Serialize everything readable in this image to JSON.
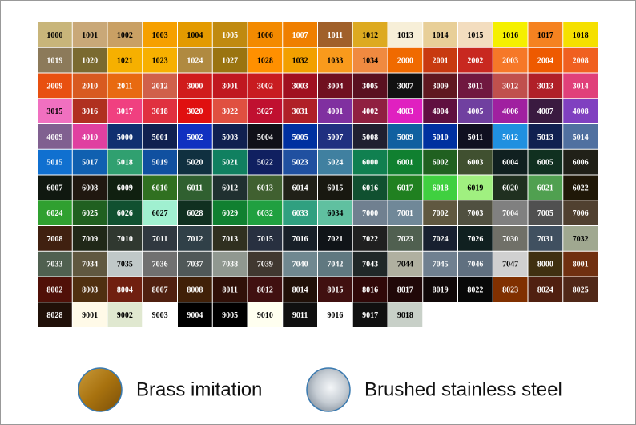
{
  "swatches": [
    {
      "code": "1000",
      "color": "#c8b57a"
    },
    {
      "code": "1001",
      "color": "#c9a878"
    },
    {
      "code": "1002",
      "color": "#c9a064"
    },
    {
      "code": "1003",
      "color": "#f6a000"
    },
    {
      "code": "1004",
      "color": "#e39a00"
    },
    {
      "code": "1005",
      "color": "#c08a10"
    },
    {
      "code": "1006",
      "color": "#f38a00"
    },
    {
      "code": "1007",
      "color": "#ef7f00"
    },
    {
      "code": "1011",
      "color": "#a0602a"
    },
    {
      "code": "1012",
      "color": "#ddaa20"
    },
    {
      "code": "1013",
      "color": "#f7efd8"
    },
    {
      "code": "1014",
      "color": "#e8cf98"
    },
    {
      "code": "1015",
      "color": "#f3ddbf"
    },
    {
      "code": "1016",
      "color": "#f5f000"
    },
    {
      "code": "1017",
      "color": "#f58220"
    },
    {
      "code": "1018",
      "color": "#f5e000"
    },
    {
      "code": "1019",
      "color": "#8c7a5a"
    },
    {
      "code": "1020",
      "color": "#7a6a30"
    },
    {
      "code": "1021",
      "color": "#f6b000"
    },
    {
      "code": "1023",
      "color": "#f7b000"
    },
    {
      "code": "1024",
      "color": "#b08a40"
    },
    {
      "code": "1027",
      "color": "#9a7410"
    },
    {
      "code": "1028",
      "color": "#ff9000"
    },
    {
      "code": "1032",
      "color": "#f2a000"
    },
    {
      "code": "1033",
      "color": "#f99a1c"
    },
    {
      "code": "1034",
      "color": "#f08a40"
    },
    {
      "code": "2000",
      "color": "#f06a00"
    },
    {
      "code": "2001",
      "color": "#c83a10"
    },
    {
      "code": "2002",
      "color": "#c82820"
    },
    {
      "code": "2003",
      "color": "#f67828"
    },
    {
      "code": "2004",
      "color": "#ee5a00"
    },
    {
      "code": "2008",
      "color": "#f06020"
    },
    {
      "code": "2009",
      "color": "#e85010"
    },
    {
      "code": "2010",
      "color": "#d85a20"
    },
    {
      "code": "2011",
      "color": "#e86a10"
    },
    {
      "code": "2012",
      "color": "#d0604a"
    },
    {
      "code": "3000",
      "color": "#d01c1c"
    },
    {
      "code": "3001",
      "color": "#c01820"
    },
    {
      "code": "3002",
      "color": "#c81c20"
    },
    {
      "code": "3003",
      "color": "#a01020"
    },
    {
      "code": "3004",
      "color": "#701020"
    },
    {
      "code": "3005",
      "color": "#5a1020"
    },
    {
      "code": "3007",
      "color": "#101010"
    },
    {
      "code": "3009",
      "color": "#601820"
    },
    {
      "code": "3011",
      "color": "#701840"
    },
    {
      "code": "3012",
      "color": "#c0504d"
    },
    {
      "code": "3013",
      "color": "#b02028"
    },
    {
      "code": "3014",
      "color": "#e0407a"
    },
    {
      "code": "3015",
      "color": "#f070c0"
    },
    {
      "code": "3016",
      "color": "#b03020"
    },
    {
      "code": "3017",
      "color": "#f04080"
    },
    {
      "code": "3018",
      "color": "#e03040"
    },
    {
      "code": "3020",
      "color": "#e01010"
    },
    {
      "code": "3022",
      "color": "#e05040"
    },
    {
      "code": "3027",
      "color": "#c01030"
    },
    {
      "code": "3031",
      "color": "#b02028"
    },
    {
      "code": "4001",
      "color": "#8030a0"
    },
    {
      "code": "4002",
      "color": "#902040"
    },
    {
      "code": "4003",
      "color": "#e020c0"
    },
    {
      "code": "4004",
      "color": "#601040"
    },
    {
      "code": "4005",
      "color": "#7040a0"
    },
    {
      "code": "4006",
      "color": "#a020a0"
    },
    {
      "code": "4007",
      "color": "#3a1a40"
    },
    {
      "code": "4008",
      "color": "#8040c0"
    },
    {
      "code": "4009",
      "color": "#806090"
    },
    {
      "code": "4010",
      "color": "#e040a0"
    },
    {
      "code": "5000",
      "color": "#103070"
    },
    {
      "code": "5001",
      "color": "#102050"
    },
    {
      "code": "5002",
      "color": "#1030c0"
    },
    {
      "code": "5003",
      "color": "#102050"
    },
    {
      "code": "5004",
      "color": "#101018"
    },
    {
      "code": "5005",
      "color": "#0030a0"
    },
    {
      "code": "5007",
      "color": "#203080"
    },
    {
      "code": "5008",
      "color": "#202030"
    },
    {
      "code": "5009",
      "color": "#1060a0"
    },
    {
      "code": "5010",
      "color": "#0030a0"
    },
    {
      "code": "5011",
      "color": "#101020"
    },
    {
      "code": "5012",
      "color": "#2090e0"
    },
    {
      "code": "5013",
      "color": "#102050"
    },
    {
      "code": "5014",
      "color": "#5070a0"
    },
    {
      "code": "5015",
      "color": "#1070d0"
    },
    {
      "code": "5017",
      "color": "#1060b0"
    },
    {
      "code": "5018",
      "color": "#30a070"
    },
    {
      "code": "5019",
      "color": "#1050a0"
    },
    {
      "code": "5020",
      "color": "#103040"
    },
    {
      "code": "5021",
      "color": "#108060"
    },
    {
      "code": "5022",
      "color": "#102060"
    },
    {
      "code": "5023",
      "color": "#2050a0"
    },
    {
      "code": "5024",
      "color": "#4080a0"
    },
    {
      "code": "6000",
      "color": "#108050"
    },
    {
      "code": "6001",
      "color": "#108030"
    },
    {
      "code": "6002",
      "color": "#206020"
    },
    {
      "code": "6003",
      "color": "#405030"
    },
    {
      "code": "6004",
      "color": "#102020"
    },
    {
      "code": "6005",
      "color": "#103020"
    },
    {
      "code": "6006",
      "color": "#202018"
    },
    {
      "code": "6007",
      "color": "#101810"
    },
    {
      "code": "6008",
      "color": "#201810"
    },
    {
      "code": "6009",
      "color": "#102010"
    },
    {
      "code": "6010",
      "color": "#307020"
    },
    {
      "code": "6011",
      "color": "#306030"
    },
    {
      "code": "6012",
      "color": "#203030"
    },
    {
      "code": "6013",
      "color": "#406030"
    },
    {
      "code": "6014",
      "color": "#202018"
    },
    {
      "code": "6015",
      "color": "#181810"
    },
    {
      "code": "6016",
      "color": "#105030"
    },
    {
      "code": "6017",
      "color": "#208020"
    },
    {
      "code": "6018",
      "color": "#40d040"
    },
    {
      "code": "6019",
      "color": "#a0f080"
    },
    {
      "code": "6020",
      "color": "#203020"
    },
    {
      "code": "6021",
      "color": "#50a050"
    },
    {
      "code": "6022",
      "color": "#201808"
    },
    {
      "code": "6024",
      "color": "#30a030"
    },
    {
      "code": "6025",
      "color": "#206020"
    },
    {
      "code": "6026",
      "color": "#105030"
    },
    {
      "code": "6027",
      "color": "#a0f0d0"
    },
    {
      "code": "6028",
      "color": "#103020"
    },
    {
      "code": "6029",
      "color": "#108030"
    },
    {
      "code": "6032",
      "color": "#20a040"
    },
    {
      "code": "6033",
      "color": "#30a080"
    },
    {
      "code": "6034",
      "color": "#60c0a0"
    },
    {
      "code": "7000",
      "color": "#708090"
    },
    {
      "code": "7001",
      "color": "#708898"
    },
    {
      "code": "7002",
      "color": "#605840"
    },
    {
      "code": "7003",
      "color": "#505040"
    },
    {
      "code": "7004",
      "color": "#808080"
    },
    {
      "code": "7005",
      "color": "#505050"
    },
    {
      "code": "7006",
      "color": "#504030"
    },
    {
      "code": "7008",
      "color": "#402010"
    },
    {
      "code": "7009",
      "color": "#202818"
    },
    {
      "code": "7010",
      "color": "#303830"
    },
    {
      "code": "7011",
      "color": "#303840"
    },
    {
      "code": "7012",
      "color": "#304048"
    },
    {
      "code": "7013",
      "color": "#303020"
    },
    {
      "code": "7015",
      "color": "#283040"
    },
    {
      "code": "7016",
      "color": "#182028"
    },
    {
      "code": "7021",
      "color": "#101418"
    },
    {
      "code": "7022",
      "color": "#202020"
    },
    {
      "code": "7023",
      "color": "#506050"
    },
    {
      "code": "7024",
      "color": "#182030"
    },
    {
      "code": "7026",
      "color": "#102020"
    },
    {
      "code": "7030",
      "color": "#707068"
    },
    {
      "code": "7031",
      "color": "#405060"
    },
    {
      "code": "7032",
      "color": "#a0a890"
    },
    {
      "code": "7033",
      "color": "#506050"
    },
    {
      "code": "7034",
      "color": "#605840"
    },
    {
      "code": "7035",
      "color": "#c0c8c8"
    },
    {
      "code": "7036",
      "color": "#707070"
    },
    {
      "code": "7037",
      "color": "#505858"
    },
    {
      "code": "7038",
      "color": "#909890"
    },
    {
      "code": "7039",
      "color": "#403830"
    },
    {
      "code": "7040",
      "color": "#708890"
    },
    {
      "code": "7042",
      "color": "#607880"
    },
    {
      "code": "7043",
      "color": "#202828"
    },
    {
      "code": "7044",
      "color": "#b0b0a0"
    },
    {
      "code": "7045",
      "color": "#708090"
    },
    {
      "code": "7046",
      "color": "#607080"
    },
    {
      "code": "7047",
      "color": "#d0d0d0"
    },
    {
      "code": "8000",
      "color": "#403010"
    },
    {
      "code": "8001",
      "color": "#703010"
    },
    {
      "code": "8002",
      "color": "#501008"
    },
    {
      "code": "8003",
      "color": "#503010"
    },
    {
      "code": "8004",
      "color": "#702010"
    },
    {
      "code": "8007",
      "color": "#502010"
    },
    {
      "code": "8008",
      "color": "#402008"
    },
    {
      "code": "8011",
      "color": "#301008"
    },
    {
      "code": "8012",
      "color": "#401010"
    },
    {
      "code": "8014",
      "color": "#201008"
    },
    {
      "code": "8015",
      "color": "#401010"
    },
    {
      "code": "8016",
      "color": "#300808"
    },
    {
      "code": "8017",
      "color": "#200808"
    },
    {
      "code": "8019",
      "color": "#100808"
    },
    {
      "code": "8022",
      "color": "#080808"
    },
    {
      "code": "8023",
      "color": "#803000"
    },
    {
      "code": "8024",
      "color": "#502010"
    },
    {
      "code": "8025",
      "color": "#502818"
    },
    {
      "code": "8028",
      "color": "#201008"
    },
    {
      "code": "9001",
      "color": "#fffae8"
    },
    {
      "code": "9002",
      "color": "#e0e8d0"
    },
    {
      "code": "9003",
      "color": "#ffffff"
    },
    {
      "code": "9004",
      "color": "#000000"
    },
    {
      "code": "9005",
      "color": "#000000"
    },
    {
      "code": "9010",
      "color": "#fffff0"
    },
    {
      "code": "9011",
      "color": "#101010"
    },
    {
      "code": "9016",
      "color": "#ffffff"
    },
    {
      "code": "9017",
      "color": "#101010"
    },
    {
      "code": "9018",
      "color": "#c8d0c8"
    }
  ],
  "finishes": [
    {
      "label": "Brass imitation"
    },
    {
      "label": "Brushed stainless steel"
    }
  ]
}
